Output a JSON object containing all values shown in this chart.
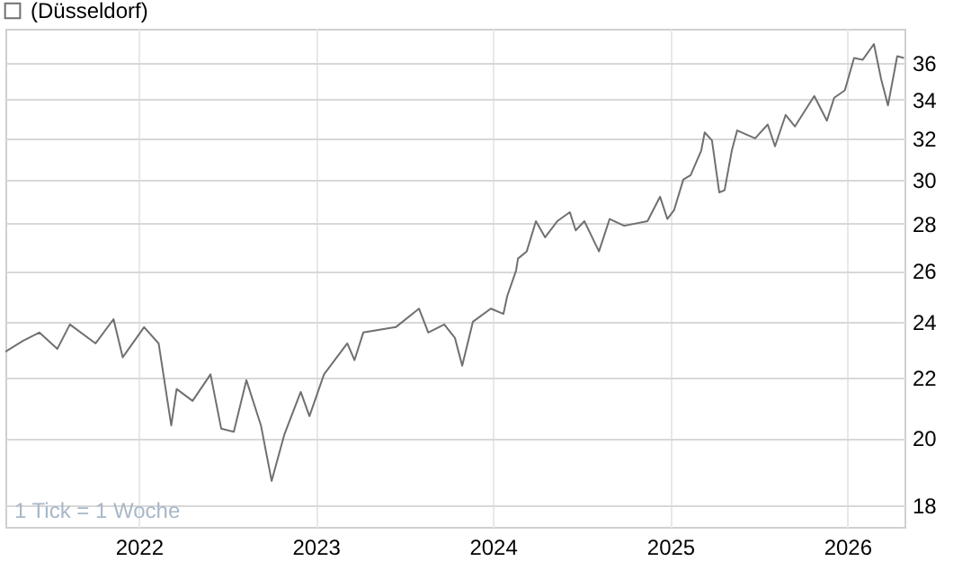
{
  "chart_data": {
    "type": "line",
    "x": [
      "2021-04-01",
      "2021-05-08",
      "2021-06-10",
      "2021-07-17",
      "2021-08-12",
      "2021-10-04",
      "2021-11-10",
      "2021-11-29",
      "2022-01-12",
      "2022-02-11",
      "2022-03-09",
      "2022-03-20",
      "2022-04-22",
      "2022-05-29",
      "2022-06-20",
      "2022-07-16",
      "2022-08-11",
      "2022-09-10",
      "2022-10-02",
      "2022-10-28",
      "2022-12-01",
      "2022-12-19",
      "2023-01-18",
      "2023-03-07",
      "2023-03-22",
      "2023-04-09",
      "2023-06-15",
      "2023-08-02",
      "2023-08-21",
      "2023-09-23",
      "2023-10-15",
      "2023-10-30",
      "2023-11-21",
      "2023-12-28",
      "2024-01-23",
      "2024-01-31",
      "2024-02-18",
      "2024-02-22",
      "2024-03-11",
      "2024-03-30",
      "2024-04-18",
      "2024-05-13",
      "2024-06-08",
      "2024-06-20",
      "2024-07-08",
      "2024-08-07",
      "2024-08-29",
      "2024-09-28",
      "2024-11-15",
      "2024-12-11",
      "2024-12-26",
      "2025-01-09",
      "2025-01-28",
      "2025-02-12",
      "2025-03-06",
      "2025-03-13",
      "2025-03-28",
      "2025-04-12",
      "2025-04-23",
      "2025-05-08",
      "2025-05-19",
      "2025-06-25",
      "2025-07-21",
      "2025-08-05",
      "2025-08-27",
      "2025-09-15",
      "2025-10-25",
      "2025-11-20",
      "2025-12-05",
      "2025-12-27",
      "2026-01-15",
      "2026-02-02",
      "2026-02-25",
      "2026-03-12",
      "2026-03-26",
      "2026-04-14",
      "2026-04-28"
    ],
    "series": [
      {
        "name": "(Düsseldorf)",
        "color": "#707070",
        "values": [
          22.9,
          23.3,
          23.6,
          23.0,
          23.9,
          23.2,
          24.1,
          22.7,
          23.8,
          23.2,
          20.4,
          21.6,
          21.2,
          22.1,
          20.3,
          20.2,
          21.9,
          20.4,
          18.7,
          20.1,
          21.5,
          20.7,
          22.1,
          23.2,
          22.6,
          23.6,
          23.8,
          24.5,
          23.6,
          23.9,
          23.4,
          22.4,
          24.0,
          24.5,
          24.3,
          25.0,
          26.0,
          26.5,
          26.8,
          28.1,
          27.4,
          28.1,
          28.5,
          27.7,
          28.1,
          26.8,
          28.2,
          27.9,
          28.1,
          29.2,
          28.2,
          28.6,
          30.0,
          30.2,
          31.4,
          32.3,
          31.9,
          29.4,
          29.5,
          31.4,
          32.4,
          32.0,
          32.7,
          31.6,
          33.2,
          32.6,
          34.2,
          32.9,
          34.1,
          34.5,
          36.3,
          36.2,
          37.1,
          35.1,
          33.7,
          36.4,
          36.3
        ]
      }
    ],
    "xlim": [
      "2021-04-01",
      "2026-04-29"
    ],
    "xticks": [
      {
        "value": "2022-01-01",
        "label": "2022"
      },
      {
        "value": "2023-01-01",
        "label": "2023"
      },
      {
        "value": "2024-01-01",
        "label": "2024"
      },
      {
        "value": "2025-01-01",
        "label": "2025"
      },
      {
        "value": "2026-01-01",
        "label": "2026"
      }
    ],
    "ylim": [
      17.4,
      38
    ],
    "yticks": [
      18,
      20,
      22,
      24,
      26,
      28,
      30,
      32,
      34,
      36
    ],
    "log": true,
    "grid": true,
    "legend": "top left",
    "annotations": [
      "1 Tick = 1 Woche"
    ]
  }
}
